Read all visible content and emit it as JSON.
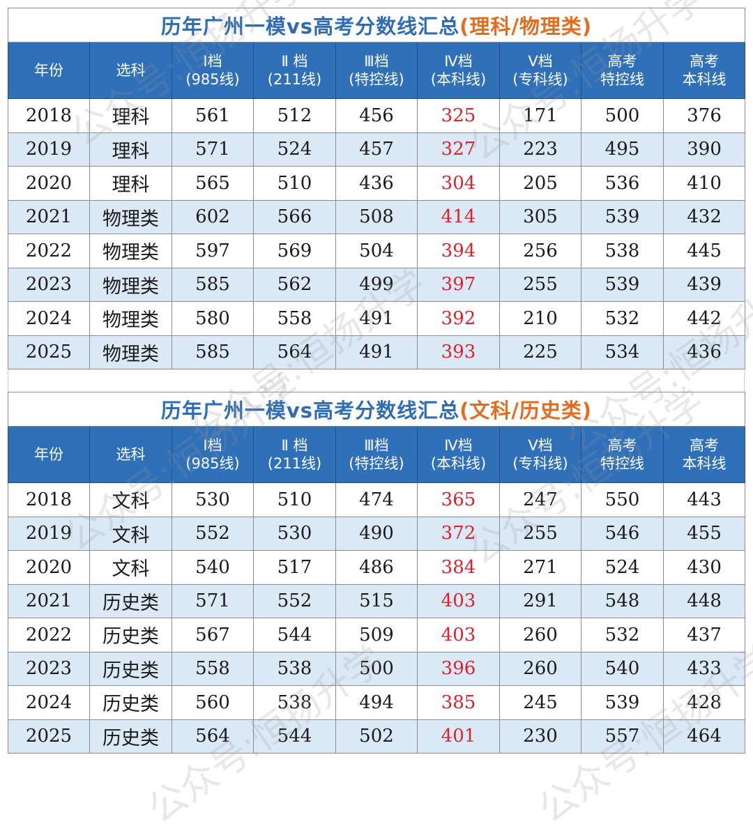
{
  "headers": [
    [
      "年份"
    ],
    [
      "选科"
    ],
    [
      "I档",
      "(985线)"
    ],
    [
      "Ⅱ 档",
      "(211线)"
    ],
    [
      "Ⅲ档",
      "(特控线)"
    ],
    [
      "Ⅳ档",
      "(本科线)"
    ],
    [
      "Ⅴ档",
      "(专科线)"
    ],
    [
      "高考",
      "特控线"
    ],
    [
      "高考",
      "本科线"
    ]
  ],
  "tables": [
    {
      "title_main": "历年广州一模vs高考分数线汇总",
      "title_sub": "(理科/物理类)",
      "rows": [
        [
          "2018",
          "理科",
          "561",
          "512",
          "456",
          "325",
          "171",
          "500",
          "376"
        ],
        [
          "2019",
          "理科",
          "571",
          "524",
          "457",
          "327",
          "223",
          "495",
          "390"
        ],
        [
          "2020",
          "理科",
          "565",
          "510",
          "436",
          "304",
          "205",
          "536",
          "410"
        ],
        [
          "2021",
          "物理类",
          "602",
          "566",
          "508",
          "414",
          "305",
          "539",
          "432"
        ],
        [
          "2022",
          "物理类",
          "597",
          "569",
          "504",
          "394",
          "256",
          "538",
          "445"
        ],
        [
          "2023",
          "物理类",
          "585",
          "562",
          "499",
          "397",
          "255",
          "539",
          "439"
        ],
        [
          "2024",
          "物理类",
          "580",
          "558",
          "491",
          "392",
          "210",
          "532",
          "442"
        ],
        [
          "2025",
          "物理类",
          "585",
          "564",
          "491",
          "393",
          "225",
          "534",
          "436"
        ]
      ]
    },
    {
      "title_main": "历年广州一模vs高考分数线汇总",
      "title_sub": "(文科/历史类)",
      "rows": [
        [
          "2018",
          "文科",
          "530",
          "510",
          "474",
          "365",
          "247",
          "550",
          "443"
        ],
        [
          "2019",
          "文科",
          "552",
          "530",
          "490",
          "372",
          "255",
          "546",
          "455"
        ],
        [
          "2020",
          "文科",
          "540",
          "517",
          "486",
          "384",
          "271",
          "524",
          "430"
        ],
        [
          "2021",
          "历史类",
          "571",
          "552",
          "515",
          "403",
          "291",
          "548",
          "448"
        ],
        [
          "2022",
          "历史类",
          "567",
          "544",
          "509",
          "403",
          "260",
          "532",
          "437"
        ],
        [
          "2023",
          "历史类",
          "558",
          "538",
          "500",
          "396",
          "260",
          "540",
          "433"
        ],
        [
          "2024",
          "历史类",
          "560",
          "538",
          "494",
          "385",
          "245",
          "539",
          "428"
        ],
        [
          "2025",
          "历史类",
          "564",
          "544",
          "502",
          "401",
          "230",
          "557",
          "464"
        ]
      ]
    }
  ],
  "watermark": "公众号:恒扬升学",
  "colors": {
    "title_main": "#2e6db4",
    "title_sub": "#e36c1e",
    "header_bg": "#2f70b8",
    "row_alt": "#dbe9f6",
    "highlight_text": "#e0212b"
  }
}
